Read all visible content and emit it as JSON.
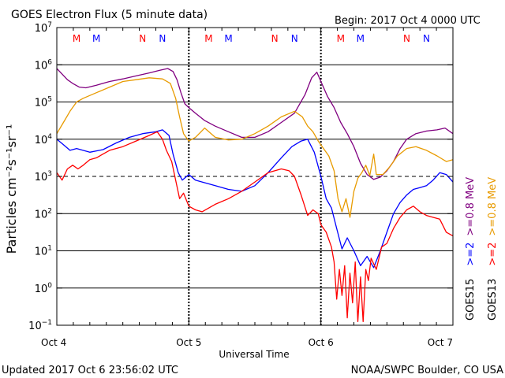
{
  "chart_data": {
    "type": "line",
    "title": "GOES Electron Flux (5 minute data)",
    "begin_label": "Begin: 2017 Oct 4 0000 UTC",
    "xlabel": "Universal Time",
    "ylabel": "Particles cm⁻²s⁻¹sr⁻¹",
    "x_ticks": [
      {
        "label": "Oct 4",
        "value": 0
      },
      {
        "label": "Oct 5",
        "value": 1
      },
      {
        "label": "Oct 6",
        "value": 2
      },
      {
        "label": "Oct 7",
        "value": 3
      }
    ],
    "x_range_days": [
      0,
      3
    ],
    "y_scale": "log",
    "ylim": [
      0.1,
      10000000
    ],
    "y_tick_exponents": [
      -1,
      0,
      1,
      2,
      3,
      4,
      5,
      6,
      7
    ],
    "y_tick_base": "10",
    "threshold": 1000,
    "grid": true,
    "mn_markers": [
      {
        "label": "M",
        "day": 0.15,
        "color": "#ff0000"
      },
      {
        "label": "M",
        "day": 0.3,
        "color": "#0000ff"
      },
      {
        "label": "N",
        "day": 0.65,
        "color": "#ff0000"
      },
      {
        "label": "N",
        "day": 0.8,
        "color": "#0000ff"
      },
      {
        "label": "M",
        "day": 1.15,
        "color": "#ff0000"
      },
      {
        "label": "M",
        "day": 1.3,
        "color": "#0000ff"
      },
      {
        "label": "N",
        "day": 1.65,
        "color": "#ff0000"
      },
      {
        "label": "N",
        "day": 1.8,
        "color": "#0000ff"
      },
      {
        "label": "M",
        "day": 2.15,
        "color": "#ff0000"
      },
      {
        "label": "M",
        "day": 2.3,
        "color": "#0000ff"
      },
      {
        "label": "N",
        "day": 2.65,
        "color": "#ff0000"
      },
      {
        "label": "N",
        "day": 2.8,
        "color": "#0000ff"
      }
    ],
    "legend_groups": [
      {
        "sat": "GOES15",
        "color": "#000000",
        "items": [
          {
            "text": ">=2",
            "color": "#0000ff"
          },
          {
            "text": ">=0.8 MeV",
            "color": "#800080"
          }
        ]
      },
      {
        "sat": "GOES13",
        "color": "#000000",
        "items": [
          {
            "text": ">=2",
            "color": "#ff0000"
          },
          {
            "text": ">=0.8 MeV",
            "color": "#e89b00"
          }
        ]
      }
    ],
    "series": [
      {
        "color": "#800080",
        "log_values": [
          [
            0,
            5.9
          ],
          [
            0.04,
            5.75
          ],
          [
            0.08,
            5.6
          ],
          [
            0.12,
            5.5
          ],
          [
            0.17,
            5.4
          ],
          [
            0.22,
            5.38
          ],
          [
            0.3,
            5.45
          ],
          [
            0.4,
            5.55
          ],
          [
            0.5,
            5.62
          ],
          [
            0.6,
            5.7
          ],
          [
            0.7,
            5.78
          ],
          [
            0.78,
            5.85
          ],
          [
            0.84,
            5.9
          ],
          [
            0.88,
            5.82
          ],
          [
            0.91,
            5.6
          ],
          [
            0.94,
            5.25
          ],
          [
            0.97,
            4.95
          ],
          [
            1.0,
            4.85
          ],
          [
            1.05,
            4.7
          ],
          [
            1.12,
            4.5
          ],
          [
            1.2,
            4.35
          ],
          [
            1.3,
            4.2
          ],
          [
            1.4,
            4.05
          ],
          [
            1.5,
            4.05
          ],
          [
            1.6,
            4.2
          ],
          [
            1.7,
            4.45
          ],
          [
            1.8,
            4.7
          ],
          [
            1.88,
            5.2
          ],
          [
            1.93,
            5.65
          ],
          [
            1.97,
            5.8
          ],
          [
            2.0,
            5.55
          ],
          [
            2.05,
            5.15
          ],
          [
            2.1,
            4.85
          ],
          [
            2.15,
            4.45
          ],
          [
            2.2,
            4.15
          ],
          [
            2.25,
            3.8
          ],
          [
            2.3,
            3.35
          ],
          [
            2.35,
            3.05
          ],
          [
            2.4,
            2.92
          ],
          [
            2.45,
            2.98
          ],
          [
            2.5,
            3.15
          ],
          [
            2.55,
            3.4
          ],
          [
            2.6,
            3.75
          ],
          [
            2.65,
            4.0
          ],
          [
            2.72,
            4.15
          ],
          [
            2.8,
            4.22
          ],
          [
            2.88,
            4.25
          ],
          [
            2.94,
            4.3
          ],
          [
            3.0,
            4.15
          ]
        ]
      },
      {
        "color": "#e89b00",
        "log_values": [
          [
            0,
            4.15
          ],
          [
            0.05,
            4.45
          ],
          [
            0.1,
            4.75
          ],
          [
            0.15,
            5.0
          ],
          [
            0.2,
            5.1
          ],
          [
            0.3,
            5.25
          ],
          [
            0.4,
            5.4
          ],
          [
            0.5,
            5.55
          ],
          [
            0.6,
            5.6
          ],
          [
            0.7,
            5.65
          ],
          [
            0.8,
            5.62
          ],
          [
            0.86,
            5.5
          ],
          [
            0.9,
            5.1
          ],
          [
            0.93,
            4.6
          ],
          [
            0.96,
            4.15
          ],
          [
            1.0,
            3.95
          ],
          [
            1.05,
            4.05
          ],
          [
            1.12,
            4.3
          ],
          [
            1.2,
            4.05
          ],
          [
            1.3,
            3.98
          ],
          [
            1.4,
            4.0
          ],
          [
            1.5,
            4.15
          ],
          [
            1.6,
            4.35
          ],
          [
            1.7,
            4.6
          ],
          [
            1.8,
            4.75
          ],
          [
            1.86,
            4.6
          ],
          [
            1.9,
            4.35
          ],
          [
            1.94,
            4.2
          ],
          [
            1.98,
            3.95
          ],
          [
            2.02,
            3.75
          ],
          [
            2.06,
            3.55
          ],
          [
            2.1,
            3.15
          ],
          [
            2.13,
            2.4
          ],
          [
            2.16,
            2.05
          ],
          [
            2.19,
            2.4
          ],
          [
            2.22,
            1.9
          ],
          [
            2.25,
            2.6
          ],
          [
            2.28,
            2.95
          ],
          [
            2.31,
            3.1
          ],
          [
            2.34,
            3.3
          ],
          [
            2.37,
            3.02
          ],
          [
            2.4,
            3.6
          ],
          [
            2.42,
            3.05
          ],
          [
            2.47,
            3.05
          ],
          [
            2.52,
            3.25
          ],
          [
            2.58,
            3.55
          ],
          [
            2.65,
            3.75
          ],
          [
            2.72,
            3.8
          ],
          [
            2.8,
            3.7
          ],
          [
            2.88,
            3.55
          ],
          [
            2.95,
            3.4
          ],
          [
            3.0,
            3.45
          ]
        ]
      },
      {
        "color": "#0000ff",
        "log_values": [
          [
            0,
            4.0
          ],
          [
            0.05,
            3.85
          ],
          [
            0.1,
            3.7
          ],
          [
            0.15,
            3.75
          ],
          [
            0.25,
            3.65
          ],
          [
            0.35,
            3.72
          ],
          [
            0.45,
            3.9
          ],
          [
            0.55,
            4.05
          ],
          [
            0.65,
            4.15
          ],
          [
            0.75,
            4.2
          ],
          [
            0.8,
            4.25
          ],
          [
            0.85,
            4.1
          ],
          [
            0.88,
            3.6
          ],
          [
            0.92,
            3.1
          ],
          [
            0.95,
            2.9
          ],
          [
            1.0,
            3.05
          ],
          [
            1.05,
            2.9
          ],
          [
            1.1,
            2.85
          ],
          [
            1.2,
            2.75
          ],
          [
            1.3,
            2.65
          ],
          [
            1.4,
            2.6
          ],
          [
            1.5,
            2.75
          ],
          [
            1.6,
            3.1
          ],
          [
            1.7,
            3.5
          ],
          [
            1.78,
            3.8
          ],
          [
            1.85,
            3.95
          ],
          [
            1.9,
            4.0
          ],
          [
            1.95,
            3.65
          ],
          [
            2.0,
            3.0
          ],
          [
            2.04,
            2.4
          ],
          [
            2.08,
            2.15
          ],
          [
            2.12,
            1.6
          ],
          [
            2.16,
            1.05
          ],
          [
            2.2,
            1.35
          ],
          [
            2.25,
            1.0
          ],
          [
            2.3,
            0.6
          ],
          [
            2.35,
            0.85
          ],
          [
            2.4,
            0.55
          ],
          [
            2.45,
            1.0
          ],
          [
            2.5,
            1.5
          ],
          [
            2.55,
            2.0
          ],
          [
            2.6,
            2.3
          ],
          [
            2.65,
            2.5
          ],
          [
            2.7,
            2.65
          ],
          [
            2.75,
            2.7
          ],
          [
            2.8,
            2.75
          ],
          [
            2.85,
            2.9
          ],
          [
            2.9,
            3.1
          ],
          [
            2.95,
            3.05
          ],
          [
            3.0,
            2.85
          ]
        ]
      },
      {
        "color": "#ff0000",
        "log_values": [
          [
            0,
            3.1
          ],
          [
            0.04,
            2.9
          ],
          [
            0.08,
            3.2
          ],
          [
            0.12,
            3.3
          ],
          [
            0.16,
            3.2
          ],
          [
            0.2,
            3.3
          ],
          [
            0.25,
            3.45
          ],
          [
            0.3,
            3.5
          ],
          [
            0.4,
            3.7
          ],
          [
            0.5,
            3.8
          ],
          [
            0.6,
            3.95
          ],
          [
            0.7,
            4.1
          ],
          [
            0.76,
            4.2
          ],
          [
            0.8,
            4.0
          ],
          [
            0.83,
            3.7
          ],
          [
            0.87,
            3.4
          ],
          [
            0.9,
            2.9
          ],
          [
            0.93,
            2.4
          ],
          [
            0.96,
            2.55
          ],
          [
            1.0,
            2.2
          ],
          [
            1.05,
            2.1
          ],
          [
            1.1,
            2.05
          ],
          [
            1.2,
            2.25
          ],
          [
            1.3,
            2.4
          ],
          [
            1.4,
            2.6
          ],
          [
            1.5,
            2.85
          ],
          [
            1.6,
            3.1
          ],
          [
            1.7,
            3.2
          ],
          [
            1.76,
            3.15
          ],
          [
            1.8,
            3.0
          ],
          [
            1.85,
            2.5
          ],
          [
            1.9,
            1.95
          ],
          [
            1.94,
            2.1
          ],
          [
            1.98,
            2.0
          ],
          [
            2.0,
            1.7
          ],
          [
            2.04,
            1.5
          ],
          [
            2.08,
            1.1
          ],
          [
            2.1,
            0.7
          ],
          [
            2.12,
            -0.3
          ],
          [
            2.14,
            0.5
          ],
          [
            2.16,
            -0.2
          ],
          [
            2.18,
            0.6
          ],
          [
            2.2,
            -0.8
          ],
          [
            2.22,
            0.4
          ],
          [
            2.24,
            -0.4
          ],
          [
            2.26,
            0.7
          ],
          [
            2.28,
            -0.9
          ],
          [
            2.3,
            0.3
          ],
          [
            2.32,
            -0.9
          ],
          [
            2.34,
            0.5
          ],
          [
            2.36,
            0.2
          ],
          [
            2.38,
            0.8
          ],
          [
            2.42,
            0.5
          ],
          [
            2.46,
            1.1
          ],
          [
            2.5,
            1.2
          ],
          [
            2.55,
            1.6
          ],
          [
            2.6,
            1.9
          ],
          [
            2.65,
            2.1
          ],
          [
            2.7,
            2.2
          ],
          [
            2.75,
            2.05
          ],
          [
            2.8,
            1.95
          ],
          [
            2.85,
            1.9
          ],
          [
            2.9,
            1.85
          ],
          [
            2.95,
            1.5
          ],
          [
            3.0,
            1.4
          ]
        ]
      }
    ]
  },
  "footer": {
    "updated": "Updated 2017 Oct  6 23:56:02 UTC",
    "source": "NOAA/SWPC Boulder, CO USA"
  }
}
